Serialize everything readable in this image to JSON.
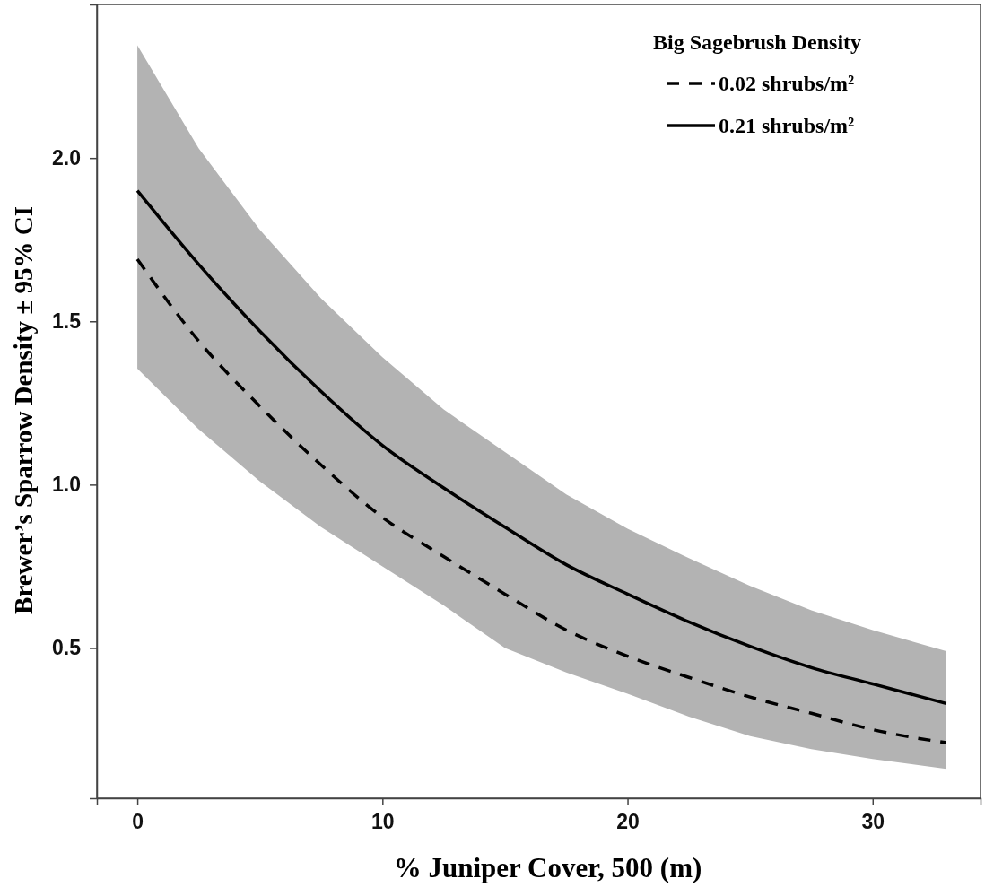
{
  "chart_data": {
    "type": "line",
    "xlabel": "% Juniper Cover, 500 (m)",
    "ylabel": "Brewer’s Sparrow Density ± 95% CI",
    "legend_title": "Big Sagebrush Density",
    "x": [
      0,
      2.5,
      5,
      7.5,
      10,
      12.5,
      15,
      17.5,
      20,
      22.5,
      25,
      27.5,
      30,
      33
    ],
    "series": [
      {
        "name": "0.02 shrubs/m²",
        "color": "#000000",
        "line_style": "dashed",
        "values": [
          1.69,
          1.44,
          1.24,
          1.06,
          0.9,
          0.78,
          0.665,
          0.555,
          0.475,
          0.41,
          0.35,
          0.3,
          0.25,
          0.21
        ],
        "lower": [
          1.355,
          1.17,
          1.01,
          0.87,
          0.75,
          0.63,
          0.5,
          0.425,
          0.36,
          0.29,
          0.23,
          0.19,
          0.16,
          0.13
        ],
        "upper": [
          2.345,
          2.03,
          1.78,
          1.57,
          1.39,
          1.23,
          1.1,
          0.97,
          0.865,
          0.775,
          0.69,
          0.615,
          0.555,
          0.49
        ]
      },
      {
        "name": "0.21 shrubs/m²",
        "color": "#000000",
        "line_style": "solid",
        "values": [
          1.9,
          1.675,
          1.47,
          1.285,
          1.12,
          0.99,
          0.87,
          0.755,
          0.665,
          0.58,
          0.505,
          0.44,
          0.39,
          0.33
        ]
      }
    ],
    "xlim": [
      -1.65,
      34.4
    ],
    "ylim": [
      0.04,
      2.47
    ],
    "xticks": [
      0,
      10,
      20,
      30
    ],
    "yticks": [
      {
        "value": 0.5,
        "label": "0.5"
      },
      {
        "value": 1,
        "label": "1.0"
      },
      {
        "value": 1.5,
        "label": "1.5"
      },
      {
        "value": 2,
        "label": "2.0"
      }
    ],
    "grid": false,
    "legend": "top right",
    "marker": "none"
  }
}
